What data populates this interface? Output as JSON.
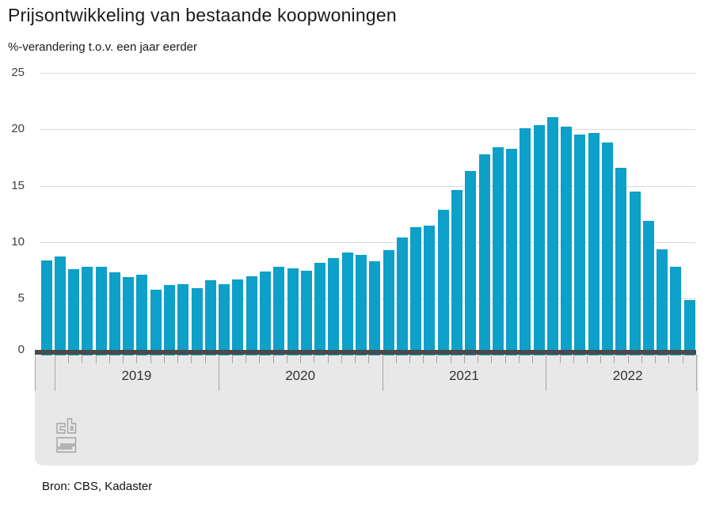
{
  "title": "Prijsontwikkeling van bestaande koopwoningen",
  "subtitle": "%-verandering t.o.v. een jaar eerder",
  "source": "Bron: CBS, Kadaster",
  "logo": "cbs-logo",
  "colors": {
    "bar": "#0da0c8",
    "band": "#e8e8e8",
    "zero_axis": "#4a4a4a",
    "gridline": "#d9d9d9",
    "tick": "#a6a6a6",
    "title_text": "#1a1a1a",
    "axis_text": "#404040",
    "year_text": "#333333",
    "logo_gray": "#a3a3a3"
  },
  "chart_data": {
    "type": "bar",
    "title": "Prijsontwikkeling van bestaande koopwoningen",
    "ylabel": "%-verandering t.o.v. een jaar eerder",
    "ylim": [
      0,
      25
    ],
    "yticks": [
      0,
      5,
      10,
      15,
      20,
      25
    ],
    "grid": "horizontal",
    "legend": "none",
    "bar_color": "#0da0c8",
    "year_labels": [
      "2019",
      "2020",
      "2021",
      "2022"
    ],
    "categories": [
      "2018-12",
      "2019-01",
      "2019-02",
      "2019-03",
      "2019-04",
      "2019-05",
      "2019-06",
      "2019-07",
      "2019-08",
      "2019-09",
      "2019-10",
      "2019-11",
      "2019-12",
      "2020-01",
      "2020-02",
      "2020-03",
      "2020-04",
      "2020-05",
      "2020-06",
      "2020-07",
      "2020-08",
      "2020-09",
      "2020-10",
      "2020-11",
      "2020-12",
      "2021-01",
      "2021-02",
      "2021-03",
      "2021-04",
      "2021-05",
      "2021-06",
      "2021-07",
      "2021-08",
      "2021-09",
      "2021-10",
      "2021-11",
      "2021-12",
      "2022-01",
      "2022-02",
      "2022-03",
      "2022-04",
      "2022-05",
      "2022-06",
      "2022-07",
      "2022-08",
      "2022-09",
      "2022-10",
      "2022-11"
    ],
    "values": [
      8.4,
      8.7,
      7.6,
      7.8,
      7.8,
      7.3,
      6.9,
      7.1,
      5.8,
      6.2,
      6.3,
      5.9,
      6.6,
      6.3,
      6.7,
      7.0,
      7.4,
      7.8,
      7.7,
      7.5,
      8.2,
      8.6,
      9.1,
      8.9,
      8.3,
      9.3,
      10.4,
      11.3,
      11.5,
      12.9,
      14.6,
      16.3,
      17.8,
      18.4,
      18.3,
      20.1,
      20.4,
      21.1,
      20.2,
      19.5,
      19.7,
      18.8,
      16.6,
      14.5,
      11.9,
      9.4,
      7.8,
      4.9
    ]
  }
}
